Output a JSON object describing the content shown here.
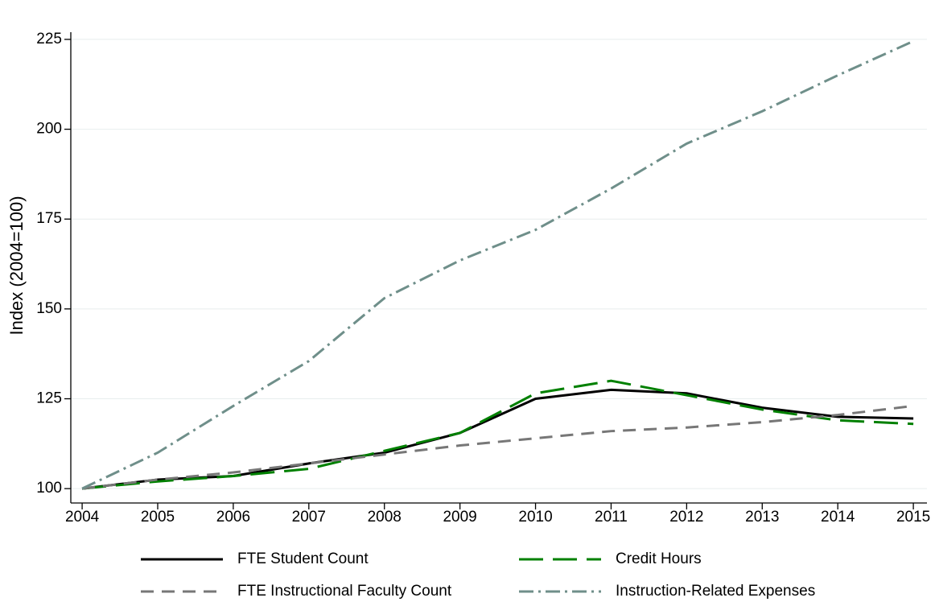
{
  "chart_data": {
    "type": "line",
    "ylabel": "Index (2004=100)",
    "x": [
      2004,
      2005,
      2006,
      2007,
      2008,
      2009,
      2010,
      2011,
      2012,
      2013,
      2014,
      2015
    ],
    "xlim": [
      2003.85,
      2015.18
    ],
    "xticks": [
      2004,
      2005,
      2006,
      2007,
      2008,
      2009,
      2010,
      2011,
      2012,
      2013,
      2014,
      2015
    ],
    "ylim": [
      96,
      227
    ],
    "yticks": [
      100,
      125,
      150,
      175,
      200,
      225
    ],
    "grid": true,
    "legend": "bottom",
    "series": [
      {
        "name": "FTE Student Count",
        "color": "#000000",
        "dash": "solid",
        "values": [
          100,
          102.5,
          103.5,
          107,
          110,
          115.5,
          125,
          127.5,
          126.5,
          122.5,
          120,
          119.5
        ]
      },
      {
        "name": "Credit Hours",
        "color": "#008000",
        "dash": "longdash",
        "values": [
          100,
          102,
          103.5,
          105.5,
          110.5,
          115.5,
          126.5,
          130,
          126,
          122,
          119,
          118
        ]
      },
      {
        "name": "FTE Instructional Faculty Count",
        "color": "#777777",
        "dash": "dash",
        "values": [
          100,
          102.5,
          104.5,
          107,
          109.5,
          112,
          114,
          116,
          117,
          118.5,
          120.5,
          123
        ]
      },
      {
        "name": "Instruction-Related Expenses",
        "color": "#6f8f8a",
        "dash": "dashdot",
        "values": [
          100,
          110,
          123,
          135.5,
          153,
          163.5,
          172,
          183.5,
          196,
          205,
          215,
          224.5
        ]
      }
    ]
  }
}
